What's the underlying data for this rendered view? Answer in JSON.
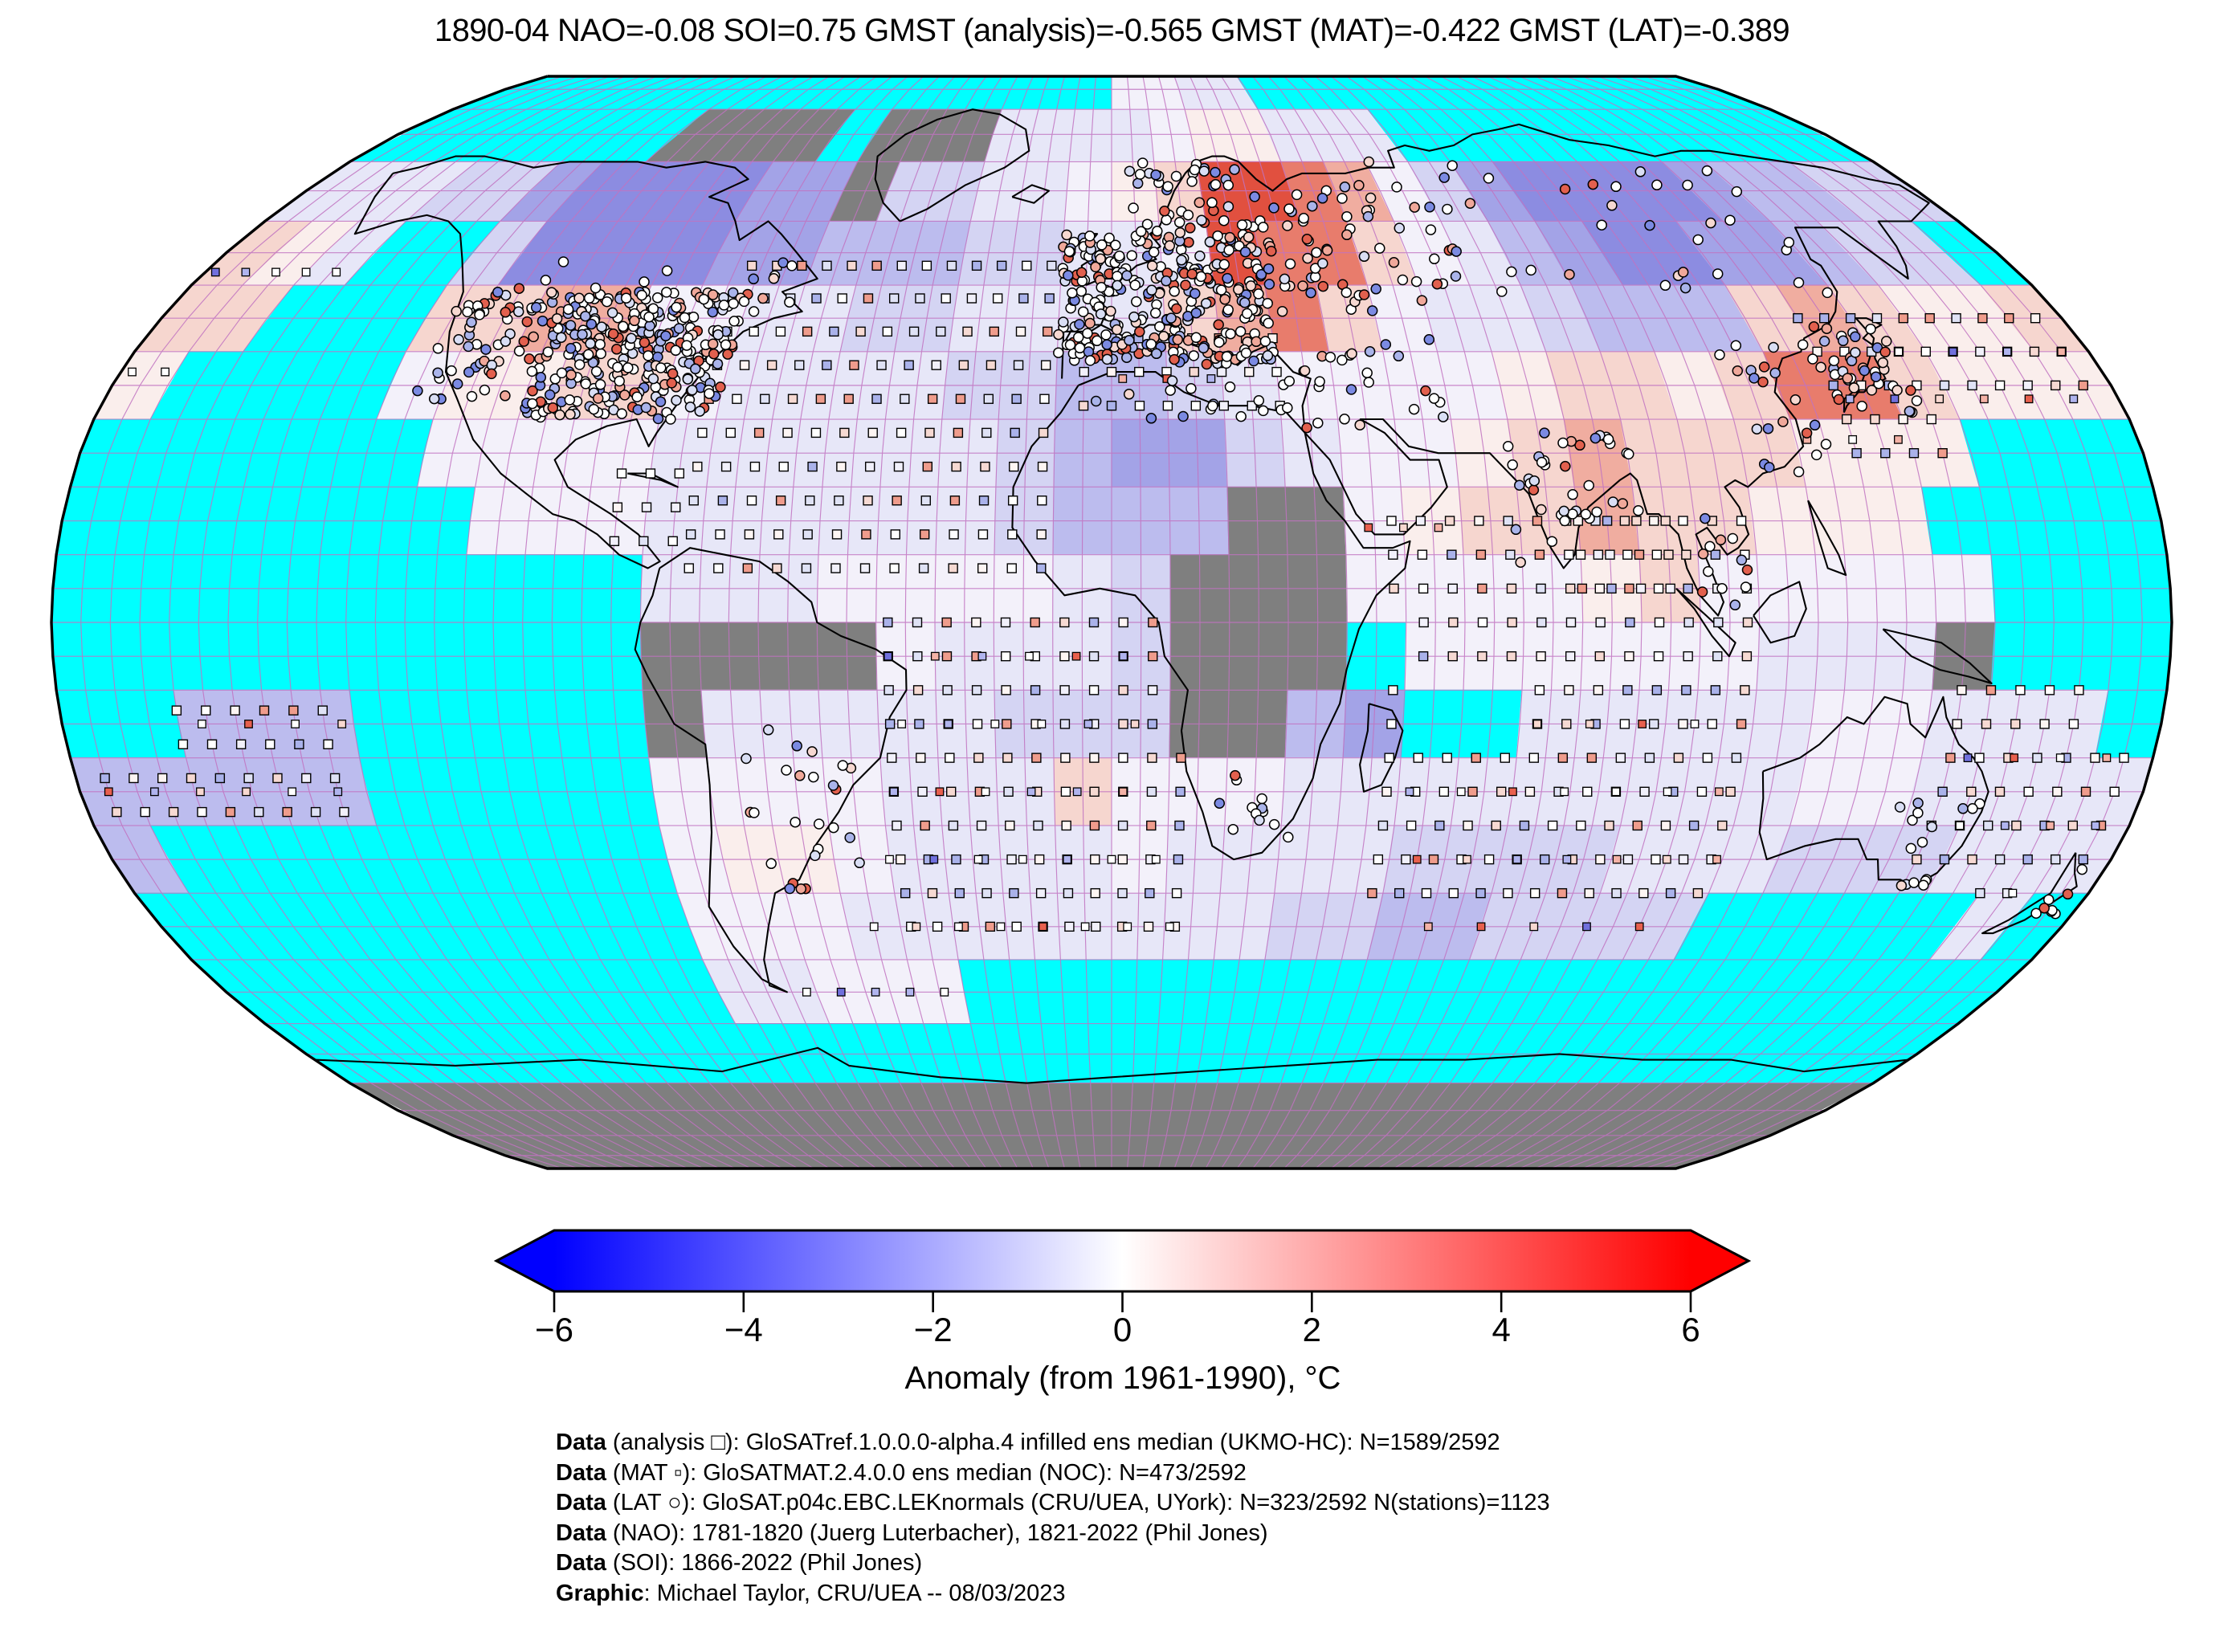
{
  "title": "1890-04 NAO=-0.08 SOI=0.75 GMST (analysis)=-0.565 GMST (MAT)=-0.422 GMST (LAT)=-0.389",
  "chart_data": {
    "type": "heatmap",
    "subtype": "global-anomaly-map",
    "projection": "robinson",
    "period": "1890-04",
    "indices": {
      "NAO": -0.08,
      "SOI": 0.75,
      "GMST_analysis": -0.565,
      "GMST_MAT": -0.422,
      "GMST_LAT": -0.389
    },
    "colorbar": {
      "label": "Anomaly (from 1961-1990), °C",
      "min": -6,
      "max": 6,
      "ticks": [
        -6,
        -4,
        -2,
        0,
        2,
        4,
        6
      ],
      "neg_color": "#0000ff",
      "zero_color": "#ffffff",
      "pos_color": "#ff0000"
    },
    "no_data_ocean_color": "#00ffff",
    "no_data_land_color": "#7f7f7f",
    "graticule_color": "#c173c1",
    "coastline_color": "#000000",
    "grid_deg": 10,
    "palette": {
      "C": "#00ffff",
      "G": "#7f7f7f",
      "a": "#8c8ce1",
      "b": "#a3a3e7",
      "c": "#bcbcee",
      "d": "#d4d4f3",
      "e": "#e7e7f8",
      "f": "#f3f1fa",
      "w": "#fdfdfd",
      "p": "#faeeec",
      "q": "#f6d6cf",
      "r": "#f0ada0",
      "s": "#e87c6c",
      "t": "#e1503f"
    },
    "grid_rows": [
      "CCCCCCCCCCCCCCCCCCffeeCCCCCCCCCCCCCC",
      "CCCCCCCGGGGCGGGeeeefppeeeCCCCCCCCCCC",
      "eeeddbaaaabbGddeefpqttsrfdbaaaabccdd",
      "qpeCCdaaaabbcccddeeftssqfecbaabbcddC",
      "qqCCCqqrrffeeddeeeeqrsqfeedcccqrqppq",
      "pCCCCfppqqfeeeeddccdeffffpqqpqssqppp",
      "CCCCCCffffeeeeeedcbbdeffpqrqqqpppCCC",
      "CCCCCCCfffeeeeeedcccGGfpqqrqqpppCCCC",
      "CCCCCCCCCCeeeffffedGGGffffpqfffffCCC",
      "CCCCCCCCCCGGGGfeeedGGGCffffffeeeGCCC",
      "CCcccCCCCCGeeeeedddGGcbCCeeeeeffeeeC",
      "cccccCCCCCffffeeeqfffeeeeeeeeeffeeee",
      "cCCCCCCCCCfppfeeeefeeeeddddeeedddeee",
      "CCCCCCCCCCfffeeeeeeeeddccddddCCCCCeC",
      "CCCCCCCCCCeefffCCCCCCCCCCCCCCCCCCCCC",
      "CCCCCCCCCCCCCCCCCCCCCCCCCCCCCCCCCCCC",
      "GGGGGGGGGGGGGGGGGGGGGGGGGGGGGGGGGGGG",
      "GGGGGGGGGGGGGGGGGGGGGGGGGGGGGGGGGGGG"
    ],
    "markers": {
      "station_symbol": "circle",
      "analysis_symbol": "open-square",
      "mat_symbol": "filled-square",
      "station_fills": [
        "#ffffff",
        "#ffffff",
        "#ffffff",
        "#ffffff",
        "#ffffff",
        "#d9def4",
        "#aab4ea",
        "#7b8ae2",
        "#f6d8d1",
        "#f0a89a",
        "#e2604e"
      ],
      "mat_fills": [
        "#ffffff",
        "#ffffff",
        "#b0b4ee",
        "#7070dd",
        "#f4b2a6",
        "#e8604e",
        "#f8d8d0"
      ],
      "analysis_fills": [
        "#ffffff",
        "#ffffff",
        "#fdf5f3",
        "#f1f0fa",
        "#dfe2f5",
        "#f6d9d2",
        "#aab2ea",
        "#ef9c8c"
      ],
      "station_clusters": [
        {
          "region": "us-east",
          "lon0": -105,
          "lon1": -70,
          "lat0": 30,
          "lat1": 49,
          "count": 300
        },
        {
          "region": "us-west",
          "lon0": -125,
          "lon1": -105,
          "lat0": 32,
          "lat1": 49,
          "count": 60
        },
        {
          "region": "canada-south",
          "lon0": -125,
          "lon1": -60,
          "lat0": 44,
          "lat1": 54,
          "count": 30
        },
        {
          "region": "europe",
          "lon0": -10,
          "lon1": 30,
          "lat0": 38,
          "lat1": 58,
          "count": 330
        },
        {
          "region": "scandinavia",
          "lon0": 4,
          "lon1": 30,
          "lat0": 58,
          "lat1": 70,
          "count": 45
        },
        {
          "region": "russia-west",
          "lon0": 30,
          "lon1": 60,
          "lat0": 45,
          "lat1": 66,
          "count": 60
        },
        {
          "region": "siberia",
          "lon0": 60,
          "lon1": 140,
          "lat0": 48,
          "lat1": 70,
          "count": 45
        },
        {
          "region": "east-asia",
          "lon0": 110,
          "lon1": 127,
          "lat0": 22,
          "lat1": 42,
          "count": 20
        },
        {
          "region": "japan",
          "lon0": 128,
          "lon1": 145,
          "lat0": 31,
          "lat1": 44,
          "count": 45
        },
        {
          "region": "india",
          "lon0": 68,
          "lon1": 92,
          "lat0": 8,
          "lat1": 28,
          "count": 40
        },
        {
          "region": "middle-east",
          "lon0": 33,
          "lon1": 60,
          "lat0": 28,
          "lat1": 42,
          "count": 25
        },
        {
          "region": "north-africa-coast",
          "lon0": -8,
          "lon1": 35,
          "lat0": 30,
          "lat1": 36,
          "count": 18
        },
        {
          "region": "south-america",
          "lon0": -65,
          "lon1": -45,
          "lat0": -40,
          "lat1": -15,
          "count": 25
        },
        {
          "region": "south-africa",
          "lon0": 16,
          "lon1": 32,
          "lat0": -34,
          "lat1": -22,
          "count": 12
        },
        {
          "region": "australia-se",
          "lon0": 138,
          "lon1": 153,
          "lat0": -39,
          "lat1": -26,
          "count": 16
        },
        {
          "region": "new-zealand",
          "lon0": 167,
          "lon1": 178,
          "lat0": -46,
          "lat1": -36,
          "count": 8
        },
        {
          "region": "se-asia-coast",
          "lon0": 98,
          "lon1": 110,
          "lat0": 1,
          "lat1": 18,
          "count": 12
        }
      ],
      "mat_rows": [
        {
          "lat": 52,
          "lon0": -178,
          "lon1": -152,
          "step": 6
        },
        {
          "lat": 37,
          "lon0": -178,
          "lon1": -166,
          "step": 6
        },
        {
          "lat": 33,
          "lon0": 132,
          "lon1": 178,
          "step": 8
        },
        {
          "lat": 40,
          "lon0": 145,
          "lon1": 178,
          "step": 10
        },
        {
          "lat": 27,
          "lon0": 122,
          "lon1": 140,
          "step": 8
        },
        {
          "lat": -8,
          "lon0": 152,
          "lon1": 178,
          "step": 8
        },
        {
          "lat": -5,
          "lon0": -38,
          "lon1": 6,
          "step": 8
        },
        {
          "lat": -15,
          "lon0": -36,
          "lon1": 8,
          "step": 8
        },
        {
          "lat": -25,
          "lon0": -38,
          "lon1": 8,
          "step": 8
        },
        {
          "lat": -35,
          "lon0": -40,
          "lon1": 10,
          "step": 8
        },
        {
          "lat": -45,
          "lon0": -45,
          "lon1": 15,
          "step": 8
        },
        {
          "lat": -15,
          "lon0": 55,
          "lon1": 105,
          "step": 9
        },
        {
          "lat": -25,
          "lon0": 52,
          "lon1": 108,
          "step": 9
        },
        {
          "lat": -35,
          "lon0": 55,
          "lon1": 110,
          "step": 9
        },
        {
          "lat": -45,
          "lon0": 60,
          "lon1": 100,
          "step": 10
        },
        {
          "lat": -20,
          "lon0": 148,
          "lon1": 178,
          "step": 8
        },
        {
          "lat": -30,
          "lon0": 150,
          "lon1": 178,
          "step": 8
        },
        {
          "lat": -40,
          "lon0": 148,
          "lon1": 175,
          "step": 9
        },
        {
          "lat": -15,
          "lon0": -172,
          "lon1": -130,
          "step": 8
        },
        {
          "lat": -25,
          "lon0": -175,
          "lon1": -128,
          "step": 8
        },
        {
          "lat": -55,
          "lon0": -62,
          "lon1": -25,
          "step": 7
        },
        {
          "lat": 36,
          "lon0": 2,
          "lon1": 20,
          "step": 8
        },
        {
          "lat": 14,
          "lon0": 44,
          "lon1": 56,
          "step": 6
        }
      ],
      "analysis_boxes": [
        {
          "lat0": 8,
          "lat1": 57,
          "lon0": -72,
          "lon1": -8,
          "step": 5
        },
        {
          "lat0": 12,
          "lat1": 25,
          "lon0": -85,
          "lon1": -72,
          "step": 5
        },
        {
          "lat0": -45,
          "lat1": 3,
          "lon0": -38,
          "lon1": 12,
          "step": 5
        },
        {
          "lat0": -40,
          "lat1": 18,
          "lon0": 48,
          "lon1": 108,
          "step": 5
        },
        {
          "lat0": -40,
          "lat1": -5,
          "lon0": 145,
          "lon1": 178,
          "step": 5
        },
        {
          "lat0": -28,
          "lat1": -12,
          "lon0": -175,
          "lon1": -130,
          "step": 5
        },
        {
          "lat0": 32,
          "lat1": 42,
          "lon0": -5,
          "lon1": 30,
          "step": 5
        },
        {
          "lat0": 25,
          "lat1": 45,
          "lon0": 130,
          "lon1": 175,
          "step": 5
        },
        {
          "lat0": 5,
          "lat1": 18,
          "lon0": 80,
          "lon1": 98,
          "step": 5
        }
      ]
    }
  },
  "footer": {
    "lines": [
      {
        "bold": "Data",
        "rest": " (analysis □): GloSATref.1.0.0.0-alpha.4 infilled ens median (UKMO-HC): N=1589/2592"
      },
      {
        "bold": "Data",
        "rest": " (MAT ▫): GloSATMAT.2.4.0.0 ens median (NOC): N=473/2592"
      },
      {
        "bold": "Data",
        "rest": " (LAT ○): GloSAT.p04c.EBC.LEKnormals (CRU/UEA, UYork): N=323/2592 N(stations)=1123"
      },
      {
        "bold": "Data",
        "rest": " (NAO): 1781-1820 (Juerg Luterbacher), 1821-2022 (Phil Jones)"
      },
      {
        "bold": "Data",
        "rest": " (SOI): 1866-2022 (Phil Jones)"
      },
      {
        "bold": "Graphic",
        "rest": ": Michael Taylor, CRU/UEA -- 08/03/2023"
      }
    ]
  }
}
